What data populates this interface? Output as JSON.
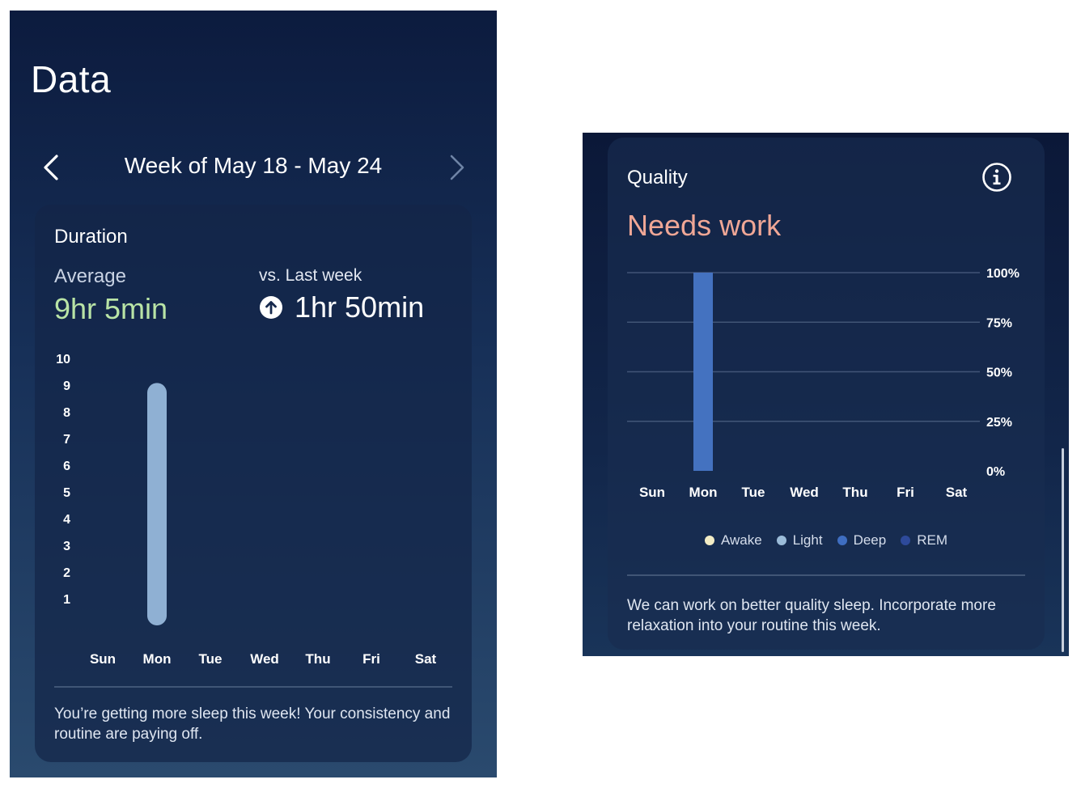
{
  "screen1": {
    "title": "Data",
    "week_label": "Week of May 18 - May 24",
    "duration_card": {
      "title": "Duration",
      "average_label": "Average",
      "average_value": "9hr 5min",
      "vs_label": "vs. Last week",
      "vs_value": "1hr 50min",
      "note": "You’re getting more sleep this week! Your consistency and routine are paying off."
    }
  },
  "screen2": {
    "quality_card": {
      "title": "Quality",
      "status": "Needs work",
      "note": "We can work on better quality sleep. Incorporate more relaxation into your routine this week.",
      "legend": [
        {
          "label": "Awake",
          "color": "#f3edc6"
        },
        {
          "label": "Light",
          "color": "#9bbcd9"
        },
        {
          "label": "Deep",
          "color": "#3f6ec1"
        },
        {
          "label": "REM",
          "color": "#2e4a9a"
        }
      ]
    }
  },
  "chart_data": [
    {
      "type": "bar",
      "categories": [
        "Sun",
        "Mon",
        "Tue",
        "Wed",
        "Thu",
        "Fri",
        "Sat"
      ],
      "values": [
        null,
        9.08,
        null,
        null,
        null,
        null,
        null
      ],
      "ylim": [
        0,
        10
      ],
      "yticks": [
        10,
        9,
        8,
        7,
        6,
        5,
        4,
        3,
        2,
        1
      ],
      "grid": false,
      "bar_color": "#8fb0d3"
    },
    {
      "type": "bar",
      "categories": [
        "Sun",
        "Mon",
        "Tue",
        "Wed",
        "Thu",
        "Fri",
        "Sat"
      ],
      "values": [
        null,
        100,
        null,
        null,
        null,
        null,
        null
      ],
      "ylim": [
        0,
        100
      ],
      "yticks": [
        "100%",
        "75%",
        "50%",
        "25%",
        "0%"
      ],
      "grid": true,
      "bar_color": "#4472c0"
    }
  ]
}
